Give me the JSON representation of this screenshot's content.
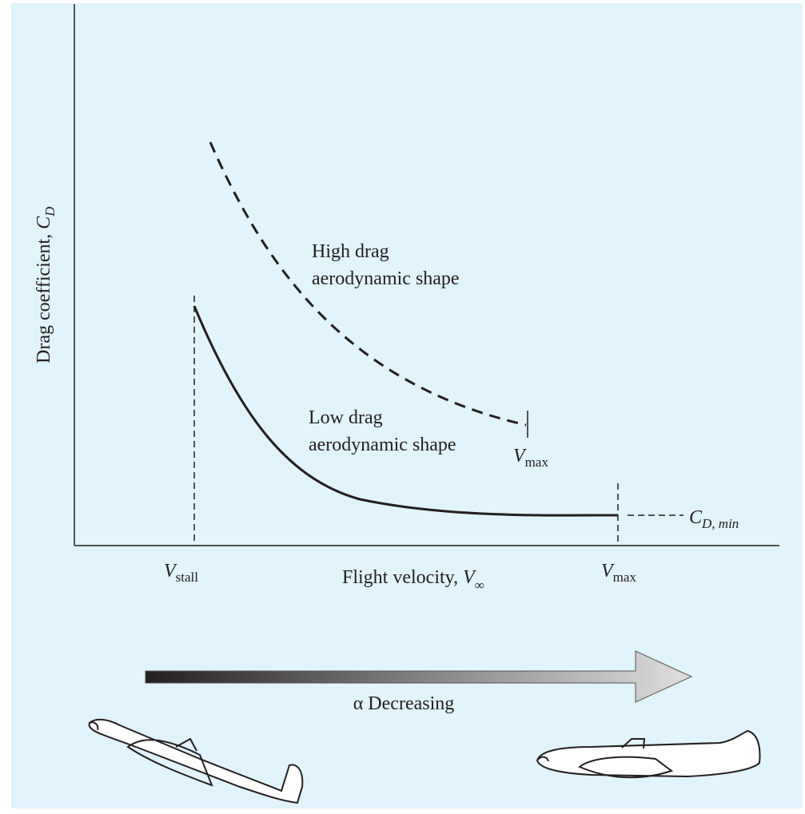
{
  "y_axis_label": {
    "text": "Drag coefficient, ",
    "symbol": "C",
    "subscript": "D"
  },
  "x_axis_label": {
    "text": "Flight velocity, ",
    "symbol": "V",
    "subscript": "∞"
  },
  "x_markers": [
    {
      "symbol": "V",
      "subscript": "stall"
    },
    {
      "symbol": "V",
      "subscript": "max"
    }
  ],
  "curves": [
    {
      "label": [
        "High drag",
        "aerodynamic shape"
      ],
      "end_marker": {
        "symbol": "V",
        "subscript": "max"
      }
    },
    {
      "label": [
        "Low drag",
        "aerodynamic shape"
      ]
    }
  ],
  "min_label": {
    "symbol": "C",
    "subscript": "D, min"
  },
  "arrow_label": "α Decreasing"
}
